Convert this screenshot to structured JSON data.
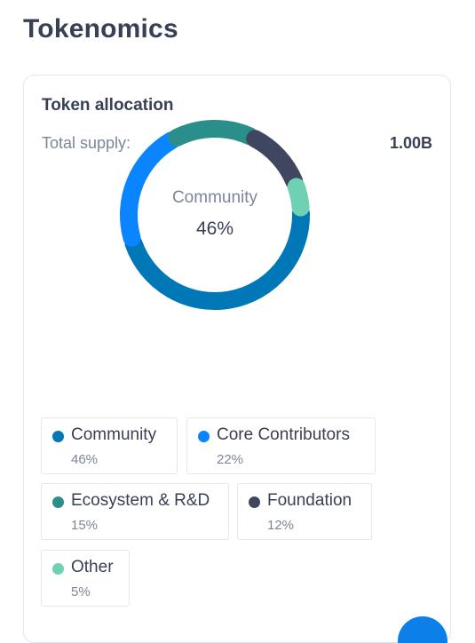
{
  "page": {
    "title": "Tokenomics"
  },
  "card": {
    "title": "Token allocation",
    "supply_label": "Total supply:",
    "supply_value": "1.00B",
    "center_label": "Community",
    "center_value": "46%"
  },
  "legend": [
    {
      "name": "Community",
      "pct": "46%",
      "color": "#0077b6"
    },
    {
      "name": "Core Contributors",
      "pct": "22%",
      "color": "#0a84ff"
    },
    {
      "name": "Ecosystem & R&D",
      "pct": "15%",
      "color": "#2a8f8b"
    },
    {
      "name": "Foundation",
      "pct": "12%",
      "color": "#3e4660"
    },
    {
      "name": "Other",
      "pct": "5%",
      "color": "#6fd1b4"
    }
  ],
  "chart_data": {
    "type": "pie",
    "categories": [
      "Community",
      "Core Contributors",
      "Ecosystem & R&D",
      "Foundation",
      "Other"
    ],
    "values": [
      46,
      22,
      15,
      12,
      5
    ],
    "colors": [
      "#0077b6",
      "#0a84ff",
      "#2a8f8b",
      "#3e4660",
      "#6fd1b4"
    ],
    "title": "Token allocation",
    "style": "donut"
  }
}
